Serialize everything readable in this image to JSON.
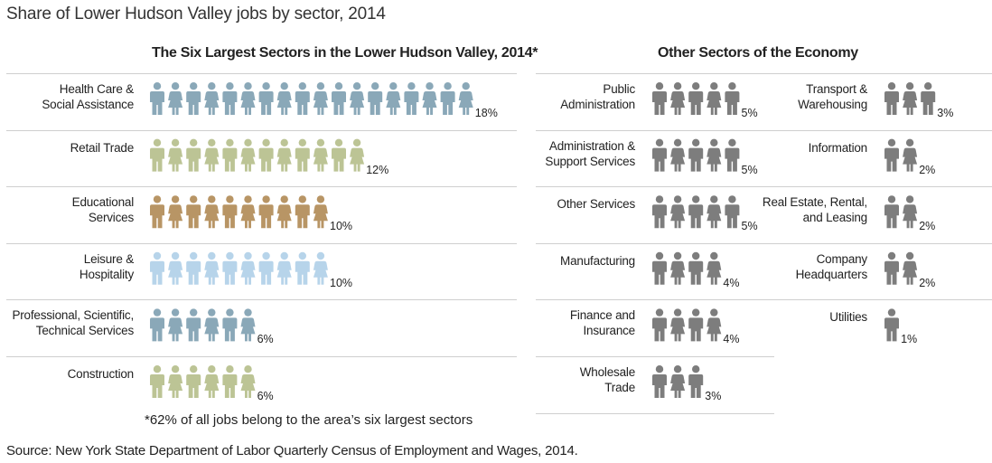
{
  "title": "Share of Lower Hudson Valley jobs by sector, 2014",
  "left_title": "The Six Largest Sectors in the Lower Hudson Valley, 2014*",
  "right_title": "Other Sectors of the Economy",
  "footnote": "*62% of all jobs belong to the area’s six largest sectors",
  "source": "Source: New York State Department of Labor Quarterly Census of Employment and Wages, 2014.",
  "chart_data": {
    "type": "bar",
    "unit": "% of jobs",
    "largest_sectors": [
      {
        "name": [
          "Health Care &",
          "Social Assistance"
        ],
        "value": 18,
        "label": "18%",
        "color": "#8aa8b8"
      },
      {
        "name": [
          "Retail Trade"
        ],
        "value": 12,
        "label": "12%",
        "color": "#bcc495"
      },
      {
        "name": [
          "Educational",
          "Services"
        ],
        "value": 10,
        "label": "10%",
        "color": "#b89565"
      },
      {
        "name": [
          "Leisure &",
          "Hospitality"
        ],
        "value": 10,
        "label": "10%",
        "color": "#b7d4ea"
      },
      {
        "name": [
          "Professional, Scientific,",
          "Technical Services"
        ],
        "value": 6,
        "label": "6%",
        "color": "#8aa8b8"
      },
      {
        "name": [
          "Construction"
        ],
        "value": 6,
        "label": "6%",
        "color": "#bcc495"
      }
    ],
    "other_sectors": [
      {
        "name": [
          "Public",
          "Administration"
        ],
        "value": 5,
        "label": "5%",
        "color": "#7d7d7d"
      },
      {
        "name": [
          "Administration &",
          "Support Services"
        ],
        "value": 5,
        "label": "5%",
        "color": "#7d7d7d"
      },
      {
        "name": [
          "Other Services"
        ],
        "value": 5,
        "label": "5%",
        "color": "#7d7d7d"
      },
      {
        "name": [
          "Manufacturing"
        ],
        "value": 4,
        "label": "4%",
        "color": "#7d7d7d"
      },
      {
        "name": [
          "Finance and",
          "Insurance"
        ],
        "value": 4,
        "label": "4%",
        "color": "#7d7d7d"
      },
      {
        "name": [
          "Wholesale",
          "Trade"
        ],
        "value": 3,
        "label": "3%",
        "color": "#7d7d7d"
      },
      {
        "name": [
          "Transport &",
          "Warehousing"
        ],
        "value": 3,
        "label": "3%",
        "color": "#7d7d7d"
      },
      {
        "name": [
          "Information"
        ],
        "value": 2,
        "label": "2%",
        "color": "#7d7d7d"
      },
      {
        "name": [
          "Real Estate, Rental,",
          "and Leasing"
        ],
        "value": 2,
        "label": "2%",
        "color": "#7d7d7d"
      },
      {
        "name": [
          "Company",
          "Headquarters"
        ],
        "value": 2,
        "label": "2%",
        "color": "#7d7d7d"
      },
      {
        "name": [
          "Utilities"
        ],
        "value": 1,
        "label": "1%",
        "color": "#7d7d7d"
      }
    ]
  }
}
